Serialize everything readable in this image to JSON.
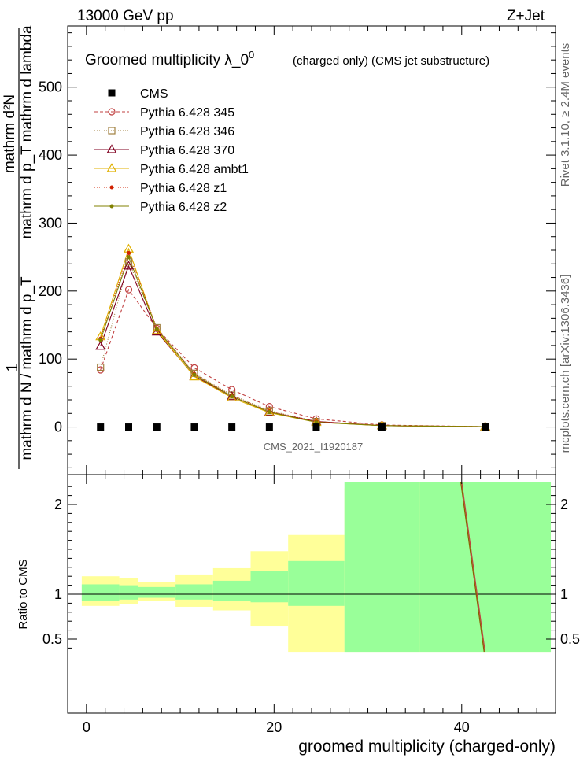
{
  "header": {
    "energy": "13000 GeV pp",
    "process": "Z+Jet"
  },
  "side_labels": {
    "rivet": "Rivet 3.1.10, ≥ 2.4M events",
    "mcplots": "mcplots.cern.ch [arXiv:1306.3436]"
  },
  "chart_data": {
    "type": "line",
    "title_main": "Groomed multiplicity  λ_0",
    "title_sup": "0",
    "title_sub": "(charged only) (CMS jet substructure)",
    "watermark": "CMS_2021_I1920187",
    "xlabel": "groomed multiplicity (charged-only)",
    "ylabel_num": "mathrm d²N",
    "ylabel_denom": "mathrm d p_T mathrm d lambda",
    "ylabel_lhs": "mathrm d N / mathrm d p_T",
    "ylabel_one": "1",
    "ratio_ylabel": "Ratio to CMS",
    "xlim": [
      -2,
      50
    ],
    "ylim": [
      -70,
      590
    ],
    "ratio_ylim": [
      0.35,
      2.25
    ],
    "x_ticks": [
      "0",
      "20",
      "40"
    ],
    "y_ticks": [
      "0",
      "100",
      "200",
      "300",
      "400",
      "500"
    ],
    "ratio_ticks": [
      "0.5",
      "1",
      "2"
    ],
    "x": [
      1.5,
      4.5,
      7.5,
      11.5,
      15.5,
      19.5,
      24.5,
      31.5,
      42.5
    ],
    "bin_edges": [
      -0.5,
      3.5,
      5.5,
      9.5,
      13.5,
      17.5,
      21.5,
      27.5,
      35.5,
      49.5
    ],
    "cms": [
      0,
      0,
      0,
      0,
      0,
      0,
      0,
      0,
      0
    ],
    "band_inner_lo": [
      0.93,
      0.94,
      0.96,
      0.94,
      0.93,
      0.91,
      0.87,
      0.35,
      0.35
    ],
    "band_inner_hi": [
      1.11,
      1.1,
      1.08,
      1.11,
      1.15,
      1.26,
      1.37,
      2.25,
      2.25
    ],
    "band_outer_lo": [
      0.87,
      0.89,
      0.93,
      0.86,
      0.82,
      0.64,
      0.35,
      0.35,
      0.35
    ],
    "band_outer_hi": [
      1.2,
      1.18,
      1.14,
      1.22,
      1.29,
      1.48,
      1.66,
      2.18,
      2.25
    ],
    "colors": {
      "band_inner": "#99ff99",
      "band_outer": "#ffff99"
    },
    "series": [
      {
        "name": "Pythia 6.428 345",
        "color": "#c04040",
        "dash": "4,3",
        "marker": "circle",
        "values": [
          84,
          202,
          145,
          87,
          55,
          30,
          12,
          3,
          0.5
        ]
      },
      {
        "name": "Pythia 6.428 346",
        "color": "#a08040",
        "dash": "1,2",
        "marker": "square",
        "values": [
          88,
          243,
          146,
          79,
          47,
          24,
          8,
          2,
          0.5
        ]
      },
      {
        "name": "Pythia 6.428 370",
        "color": "#800020",
        "dash": "",
        "marker": "triangle",
        "values": [
          119,
          237,
          140,
          75,
          45,
          22,
          8,
          2,
          0.5
        ]
      },
      {
        "name": "Pythia 6.428 ambt1",
        "color": "#e0b000",
        "dash": "",
        "marker": "triangle",
        "values": [
          133,
          262,
          142,
          74,
          43,
          21,
          7,
          2,
          0.5
        ]
      },
      {
        "name": "Pythia 6.428 z1",
        "color": "#d02000",
        "dash": "1,2",
        "marker": "dot",
        "values": [
          130,
          256,
          145,
          78,
          46,
          23,
          8,
          2,
          0.5
        ]
      },
      {
        "name": "Pythia 6.428 z2",
        "color": "#808000",
        "dash": "",
        "marker": "dot",
        "values": [
          128,
          250,
          144,
          77,
          45,
          22,
          7,
          2,
          0.5
        ]
      }
    ],
    "legend_data_name": "CMS",
    "ratio_lines": [
      {
        "name": "Pythia 6.428 345",
        "color": "#c04040",
        "x": [
          40.0,
          42.5
        ],
        "y": [
          2.25,
          0.35
        ]
      },
      {
        "name": "Pythia 6.428 z1",
        "color": "#8a6000",
        "x": [
          39.9,
          42.4
        ],
        "y": [
          2.25,
          0.35
        ]
      }
    ]
  }
}
